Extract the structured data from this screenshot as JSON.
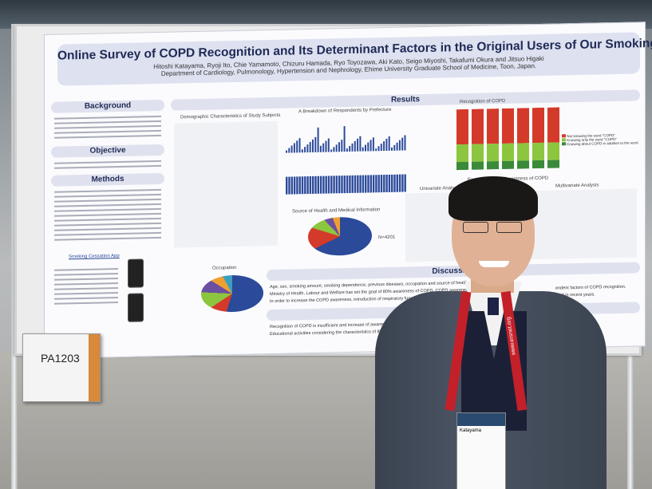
{
  "poster": {
    "title": "Online Survey of COPD Recognition and Its Determinant Factors in the Original Users of Our Smoking Cessation App",
    "authors": "Hitoshi Katayama, Ryoji Ito, Chie Yamamoto, Chizuru Hamada, Ryo Toyozawa, Aki Kato, Seigo Miyoshi, Takafumi Okura and Jitsuo Higaki",
    "affiliation": "Department of Cardiology, Pulmonology, Hypertension and Nephrology, Ehime University Graduate School of Medicine, Toon, Japan.",
    "sections": {
      "background": "Background",
      "objective": "Objective",
      "methods": "Methods",
      "results": "Results",
      "discussion": "Discussion",
      "conclusion": "Co"
    },
    "subheads": {
      "demographic": "Demographic Characteristics of Study Subjects",
      "prefecture": "A Breakdown of Respondents by Prefecture",
      "recognition": "Recognition of COPD",
      "factors": "Factors Affecting Awareness of COPD",
      "univariate": "Univariate Analysis",
      "multivariate": "Multivariate Analysis",
      "source": "Source of Health and Medical Information",
      "occupation": "Occupation",
      "app": "Smoking Cessation App"
    },
    "legend": [
      "Not knowing the word \"COPD\"",
      "Knowing only the word \"COPD\"",
      "Knowing about COPD in addition to the word"
    ],
    "discussion_lines": [
      "Age, sex, smoking amount, smoking dependence, previous diseases, occupation and source of health and medical",
      "Ministry of Health, Labour and Welfare has set the goal of 80% awareness of COPD. COPD awareness is lo",
      "In order to increase the COPD awareness, introduction of respiratory function testing in the workp"
    ],
    "discussion_tail": [
      "endent factors of COPD recognition.",
      "ated in recent years."
    ],
    "conclusion_lines": [
      "Recognition of COPD is insufficient and increase of awareness is lik",
      "Educational activities considering the characteristics of the peop"
    ],
    "n_label": "N=4201"
  },
  "placard": {
    "code": "PA1203"
  },
  "badge": {
    "lanyard_text": "www.ersnet.org",
    "name": "Katayama"
  },
  "colors": {
    "red": "#d43a2a",
    "green": "#8cc63f",
    "darkgreen": "#3a8a3a",
    "blue": "#2b4a9a"
  }
}
